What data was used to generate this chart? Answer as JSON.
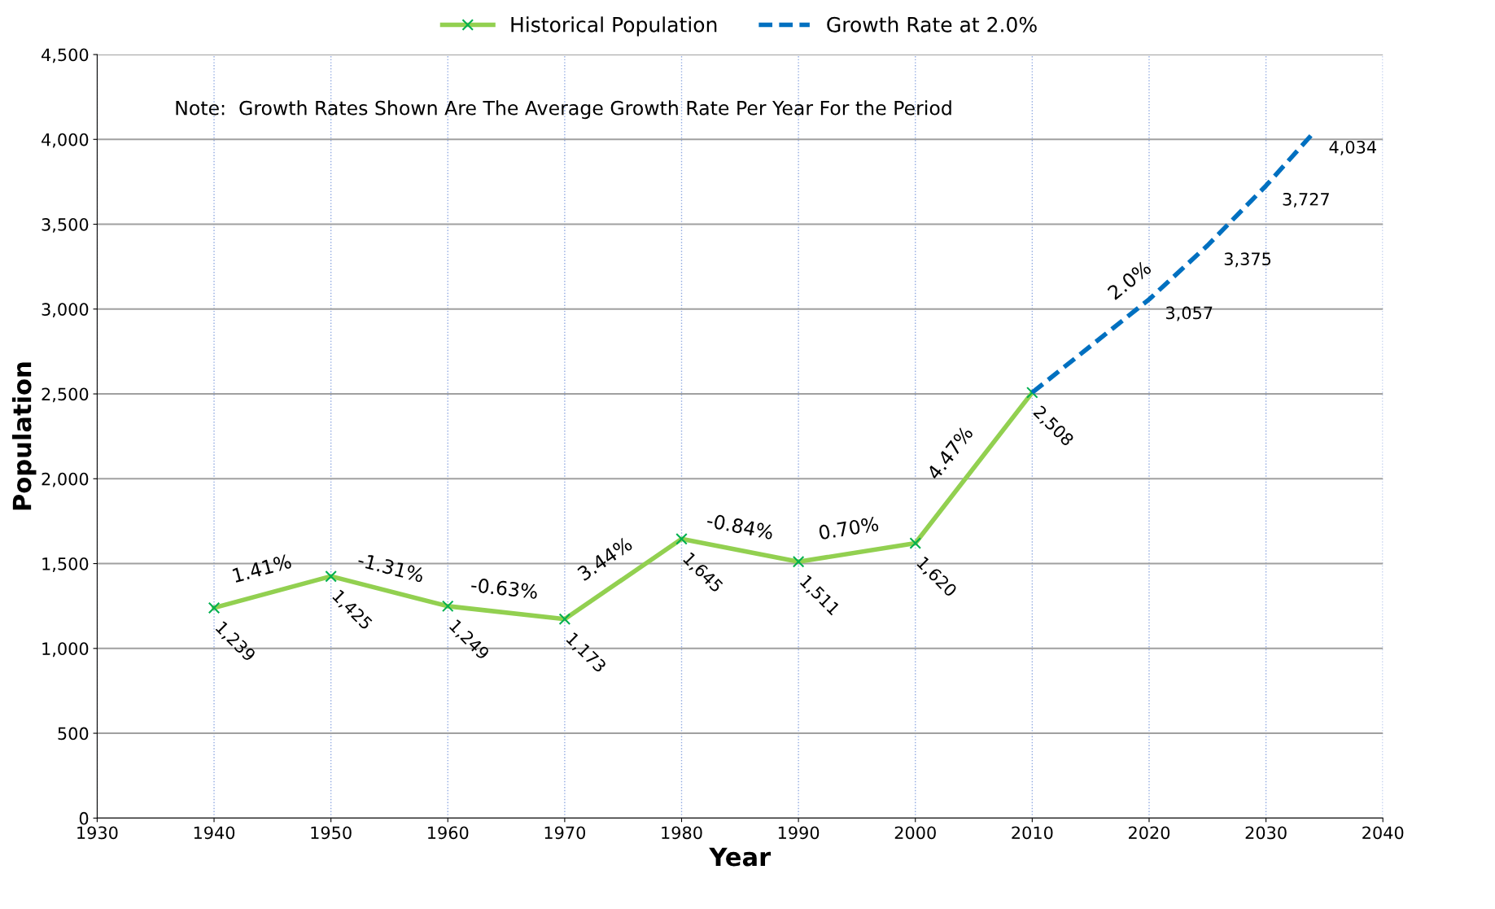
{
  "chart_data": {
    "type": "line",
    "xlabel": "Year",
    "ylabel": "Population",
    "series": [
      {
        "name": "Historical Population",
        "color": "#92d050",
        "marker": "cross",
        "line_style": "solid",
        "x": [
          1940,
          1950,
          1960,
          1970,
          1980,
          1990,
          2000,
          2010
        ],
        "values": [
          1239,
          1425,
          1249,
          1173,
          1645,
          1511,
          1620,
          2508
        ],
        "value_labels": [
          "1,239",
          "1,425",
          "1,249",
          "1,173",
          "1,645",
          "1,511",
          "1,620",
          "2,508"
        ]
      },
      {
        "name": "Growth Rate at 2.0%",
        "color": "#0070c0",
        "marker": "none",
        "line_style": "dashed",
        "x": [
          2010,
          2020,
          2025,
          2030,
          2034
        ],
        "values": [
          2508,
          3057,
          3375,
          3727,
          4034
        ],
        "value_labels": [
          null,
          "3,057",
          "3,375",
          "3,727",
          "4,034"
        ]
      }
    ],
    "annotations": [
      "Note:  Growth Rates Shown Are The Average Growth Rate Per Year For the Period",
      {
        "text": "1.41%",
        "x": 1945,
        "y": 1332
      },
      {
        "text": "-1.31%",
        "x": 1955,
        "y": 1337
      },
      {
        "text": "-0.63%",
        "x": 1965,
        "y": 1211
      },
      {
        "text": "3.44%",
        "x": 1975,
        "y": 1409
      },
      {
        "text": "-0.84%",
        "x": 1985,
        "y": 1578
      },
      {
        "text": "0.70%",
        "x": 1995,
        "y": 1566
      },
      {
        "text": "4.47%",
        "x": 2005,
        "y": 2064
      },
      {
        "text": "2.0%",
        "x": 2020,
        "y": 3057
      }
    ],
    "xlim": [
      1930,
      2040
    ],
    "xticks": [
      1930,
      1940,
      1950,
      1960,
      1970,
      1980,
      1990,
      2000,
      2010,
      2020,
      2030,
      2040
    ],
    "ylim": [
      0,
      4500
    ],
    "yticks": [
      0,
      500,
      {
        "value": 1000,
        "label": "1,000"
      },
      {
        "value": 1500,
        "label": "1,500"
      },
      {
        "value": 2000,
        "label": "2,000"
      },
      {
        "value": 2500,
        "label": "2,500"
      },
      {
        "value": 3000,
        "label": "3,000"
      },
      {
        "value": 3500,
        "label": "3,500"
      },
      {
        "value": 4000,
        "label": "4,000"
      },
      {
        "value": 4500,
        "label": "4,500"
      }
    ],
    "grid": true,
    "legend": "top"
  }
}
